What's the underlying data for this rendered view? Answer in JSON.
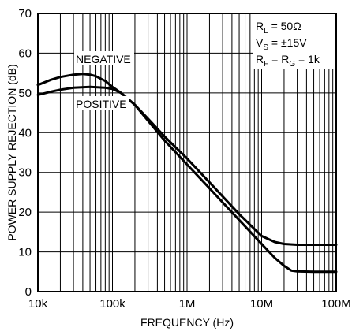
{
  "chart_data": {
    "type": "line",
    "title": "",
    "xlabel": "FREQUENCY (Hz)",
    "ylabel": "POWER SUPPLY REJECTION (dB)",
    "x_scale": "log",
    "xlim": [
      10000,
      100000000
    ],
    "ylim": [
      0,
      70
    ],
    "x_ticks": [
      {
        "value": 10000,
        "label": "10k"
      },
      {
        "value": 100000,
        "label": "100k"
      },
      {
        "value": 1000000,
        "label": "1M"
      },
      {
        "value": 10000000,
        "label": "10M"
      },
      {
        "value": 100000000,
        "label": "100M"
      }
    ],
    "y_ticks": [
      {
        "value": 0,
        "label": "0"
      },
      {
        "value": 10,
        "label": "10"
      },
      {
        "value": 20,
        "label": "20"
      },
      {
        "value": 30,
        "label": "30"
      },
      {
        "value": 40,
        "label": "40"
      },
      {
        "value": 50,
        "label": "50"
      },
      {
        "value": 60,
        "label": "60"
      },
      {
        "value": 70,
        "label": "70"
      }
    ],
    "grid": true,
    "conditions": [
      {
        "main": "R",
        "sub": "L",
        "rest": " = 50Ω"
      },
      {
        "main": "V",
        "sub": "S",
        "rest": " = ±15V"
      },
      {
        "main": "R",
        "sub": "F",
        "rest": " = R",
        "sub2": "G",
        "rest2": " = 1k"
      }
    ],
    "series": [
      {
        "name": "NEGATIVE",
        "x": [
          10000,
          15000,
          20000,
          30000,
          40000,
          50000,
          60000,
          80000,
          100000,
          130000,
          200000,
          300000,
          500000,
          1000000,
          2000000,
          5000000,
          10000000,
          15000000,
          20000000,
          30000000,
          50000000,
          100000000
        ],
        "y": [
          52,
          53.3,
          54,
          54.6,
          54.8,
          54.6,
          54.2,
          53,
          51.5,
          50,
          47,
          43.5,
          39,
          33.5,
          27.5,
          19.5,
          14,
          12.5,
          12,
          11.8,
          11.8,
          11.8
        ]
      },
      {
        "name": "POSITIVE",
        "x": [
          10000,
          15000,
          20000,
          30000,
          50000,
          80000,
          100000,
          130000,
          200000,
          300000,
          500000,
          1000000,
          2000000,
          5000000,
          10000000,
          15000000,
          20000000,
          25000000,
          30000000,
          50000000,
          100000000
        ],
        "y": [
          49.5,
          50.3,
          50.8,
          51.3,
          51.5,
          51.3,
          51,
          50,
          47,
          43,
          38,
          32,
          26,
          18,
          12,
          8.5,
          6.5,
          5.3,
          5.1,
          5,
          5
        ]
      }
    ]
  }
}
